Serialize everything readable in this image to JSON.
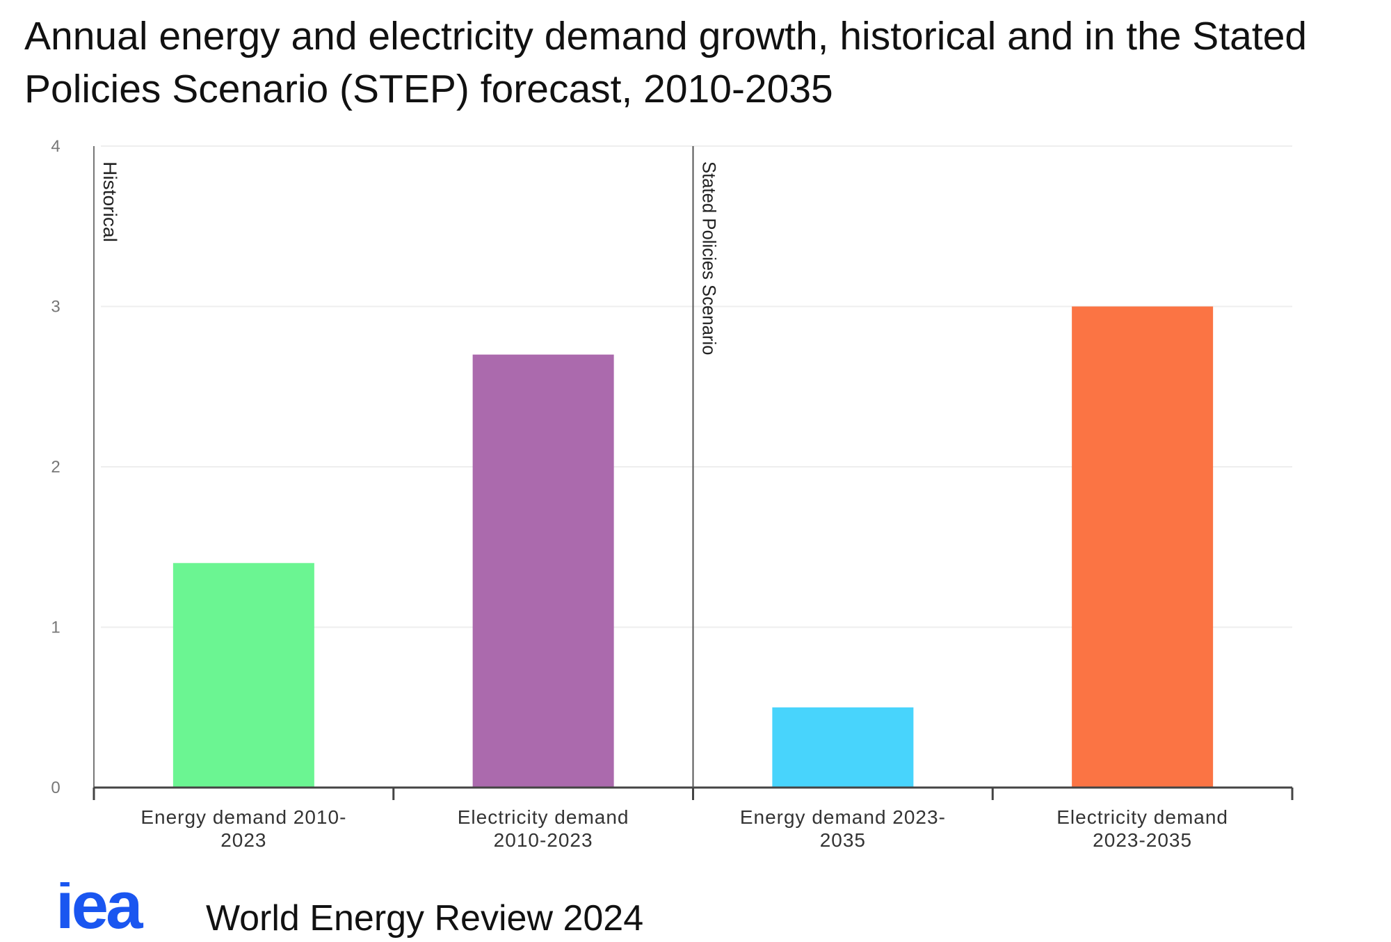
{
  "title": "Annual energy and electricity demand growth, historical and in the Stated Policies Scenario (STEP) forecast, 2010-2035",
  "chart_data": {
    "type": "bar",
    "title": "Annual energy and electricity demand growth, historical and in the Stated Policies Scenario (STEP) forecast, 2010-2035",
    "xlabel": "",
    "ylabel": "",
    "ylim": [
      0,
      4
    ],
    "yticks": [
      "0",
      "1",
      "2",
      "3",
      "4"
    ],
    "grid": true,
    "categories": [
      "Energy demand 2010-2023",
      "Electricity demand 2010-2023",
      "Energy demand 2023-2035",
      "Electricity demand 2023-2035"
    ],
    "category_label_lines": [
      [
        "Energy demand 2010-",
        "2023"
      ],
      [
        "Electricity demand",
        "2010-2023"
      ],
      [
        "Energy demand 2023-",
        "2035"
      ],
      [
        "Electricity demand",
        "2023-2035"
      ]
    ],
    "values": [
      1.4,
      2.7,
      0.5,
      3.0
    ],
    "colors": [
      "#6bf592",
      "#ab6aad",
      "#48d4fc",
      "#fb7444"
    ],
    "annotations": [
      {
        "text": "Historical",
        "after_category_index": -1
      },
      {
        "text": "Stated Policies Scenario",
        "after_category_index": 1
      }
    ]
  },
  "footer": {
    "logo_text": "iea",
    "logo_color": "#1a56f0",
    "source": "World Energy Review 2024"
  }
}
